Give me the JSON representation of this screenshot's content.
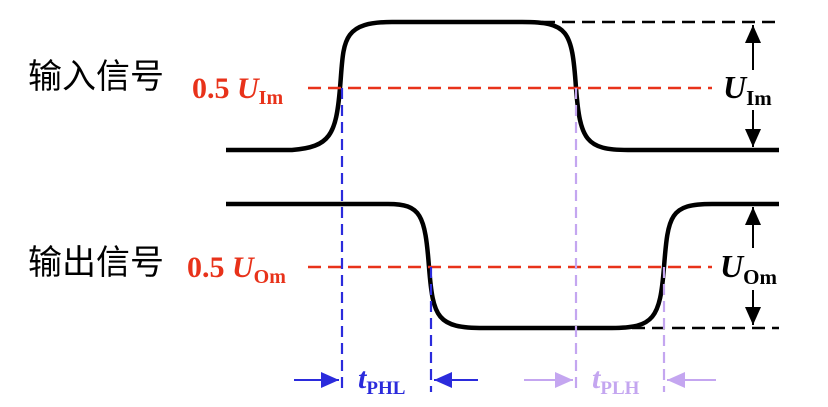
{
  "labels": {
    "input_signal": "输入信号",
    "output_signal": "输出信号"
  },
  "input_level": {
    "prefix": "0.5 ",
    "symbol": "U",
    "subscript": "Im"
  },
  "output_level": {
    "prefix": "0.5 ",
    "symbol": "U",
    "subscript": "Om"
  },
  "input_amplitude": {
    "symbol": "U",
    "subscript": "Im"
  },
  "output_amplitude": {
    "symbol": "U",
    "subscript": "Om"
  },
  "t_phl": {
    "symbol": "t",
    "subscript": "PHL"
  },
  "t_plh": {
    "symbol": "t",
    "subscript": "PLH"
  },
  "colors": {
    "waveform": "#000000",
    "half_level": "#e8321a",
    "t_phl": "#2b2bdc",
    "t_plh": "#c4a6f0"
  }
}
